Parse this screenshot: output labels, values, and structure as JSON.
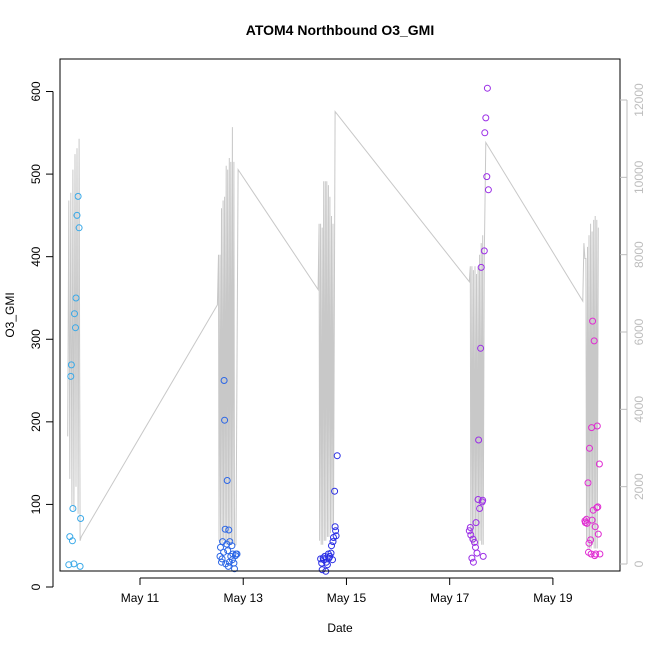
{
  "chart_data": {
    "type": "scatter",
    "title": "ATOM4 Northbound O3_GMI",
    "xlabel": "Date",
    "ylabel": "O3_GMI",
    "x_ticks": [
      "May 11",
      "May 13",
      "May 15",
      "May 17",
      "May 19"
    ],
    "x_tick_days": [
      11,
      13,
      15,
      17,
      19
    ],
    "xlim": [
      9.45,
      20.3
    ],
    "ylim": [
      0,
      620
    ],
    "y_ticks": [
      0,
      100,
      200,
      300,
      400,
      500,
      600
    ],
    "y2_ticks": [
      0,
      2000,
      4000,
      6000,
      8000,
      10000,
      12000
    ],
    "y2lim": [
      0,
      12000
    ],
    "series": [
      {
        "color": "#3aa9e8",
        "points": [
          [
            9.62,
            27
          ],
          [
            9.64,
            61
          ],
          [
            9.66,
            255
          ],
          [
            9.67,
            269
          ],
          [
            9.69,
            56
          ],
          [
            9.7,
            95
          ],
          [
            9.72,
            28
          ],
          [
            9.73,
            331
          ],
          [
            9.75,
            314
          ],
          [
            9.76,
            350
          ],
          [
            9.78,
            450
          ],
          [
            9.8,
            473
          ],
          [
            9.82,
            435
          ],
          [
            9.84,
            25
          ],
          [
            9.85,
            83
          ]
        ]
      },
      {
        "color": "#2b66e6",
        "points": [
          [
            12.55,
            37
          ],
          [
            12.56,
            48
          ],
          [
            12.58,
            30
          ],
          [
            12.59,
            34
          ],
          [
            12.6,
            55
          ],
          [
            12.62,
            42
          ],
          [
            12.63,
            250
          ],
          [
            12.64,
            202
          ],
          [
            12.65,
            70
          ],
          [
            12.66,
            28
          ],
          [
            12.68,
            52
          ],
          [
            12.69,
            129
          ],
          [
            12.7,
            44
          ],
          [
            12.71,
            25
          ],
          [
            12.72,
            69
          ],
          [
            12.73,
            30
          ],
          [
            12.74,
            55
          ],
          [
            12.76,
            37
          ],
          [
            12.78,
            50
          ],
          [
            12.79,
            33
          ],
          [
            12.8,
            40
          ],
          [
            12.82,
            29
          ],
          [
            12.83,
            22
          ],
          [
            12.85,
            38
          ],
          [
            12.86,
            40
          ],
          [
            12.88,
            40
          ]
        ]
      },
      {
        "color": "#2a2ee4",
        "points": [
          [
            14.5,
            34
          ],
          [
            14.52,
            29
          ],
          [
            14.53,
            21
          ],
          [
            14.55,
            35
          ],
          [
            14.56,
            33
          ],
          [
            14.58,
            37
          ],
          [
            14.6,
            19
          ],
          [
            14.61,
            30
          ],
          [
            14.63,
            27
          ],
          [
            14.65,
            40
          ],
          [
            14.66,
            35
          ],
          [
            14.68,
            37
          ],
          [
            14.7,
            41
          ],
          [
            14.71,
            50
          ],
          [
            14.73,
            33
          ],
          [
            14.74,
            55
          ],
          [
            14.75,
            60
          ],
          [
            14.77,
            116
          ],
          [
            14.78,
            73
          ],
          [
            14.79,
            68
          ],
          [
            14.8,
            62
          ],
          [
            14.82,
            159
          ]
        ]
      },
      {
        "color": "#9b2ee6",
        "points": [
          [
            17.38,
            68
          ],
          [
            17.4,
            72
          ],
          [
            17.41,
            63
          ],
          [
            17.43,
            35
          ],
          [
            17.45,
            58
          ],
          [
            17.46,
            30
          ],
          [
            17.48,
            54
          ],
          [
            17.5,
            48
          ],
          [
            17.51,
            78
          ],
          [
            17.53,
            41
          ],
          [
            17.55,
            106
          ],
          [
            17.56,
            178
          ],
          [
            17.58,
            95
          ],
          [
            17.6,
            289
          ],
          [
            17.61,
            387
          ],
          [
            17.63,
            103
          ],
          [
            17.64,
            105
          ],
          [
            17.65,
            37
          ],
          [
            17.67,
            407
          ],
          [
            17.68,
            550
          ],
          [
            17.7,
            568
          ],
          [
            17.72,
            497
          ],
          [
            17.73,
            604
          ],
          [
            17.75,
            481
          ]
        ]
      },
      {
        "color": "#e02bd2",
        "points": [
          [
            19.62,
            80
          ],
          [
            19.63,
            78
          ],
          [
            19.65,
            82
          ],
          [
            19.66,
            77
          ],
          [
            19.68,
            126
          ],
          [
            19.69,
            42
          ],
          [
            19.7,
            53
          ],
          [
            19.71,
            168
          ],
          [
            19.73,
            57
          ],
          [
            19.74,
            40
          ],
          [
            19.75,
            193
          ],
          [
            19.76,
            81
          ],
          [
            19.77,
            322
          ],
          [
            19.78,
            93
          ],
          [
            19.8,
            298
          ],
          [
            19.81,
            38
          ],
          [
            19.82,
            73
          ],
          [
            19.83,
            40
          ],
          [
            19.85,
            96
          ],
          [
            19.86,
            195
          ],
          [
            19.87,
            97
          ],
          [
            19.88,
            64
          ],
          [
            19.9,
            149
          ],
          [
            19.91,
            40
          ]
        ]
      }
    ],
    "line_series": {
      "color": "#c8c8c8",
      "axis": "right",
      "points": [
        [
          9.6,
          3300
        ],
        [
          9.62,
          9400
        ],
        [
          9.64,
          2200
        ],
        [
          9.66,
          9600
        ],
        [
          9.68,
          1500
        ],
        [
          9.7,
          10200
        ],
        [
          9.72,
          1400
        ],
        [
          9.74,
          10600
        ],
        [
          9.76,
          2000
        ],
        [
          9.78,
          10750
        ],
        [
          9.8,
          1300
        ],
        [
          9.82,
          11000
        ],
        [
          9.84,
          600
        ],
        [
          9.86,
          700
        ],
        [
          12.5,
          6700
        ],
        [
          12.52,
          8000
        ],
        [
          12.53,
          600
        ],
        [
          12.55,
          8000
        ],
        [
          12.56,
          500
        ],
        [
          12.58,
          9200
        ],
        [
          12.59,
          500
        ],
        [
          12.61,
          9400
        ],
        [
          12.62,
          600
        ],
        [
          12.64,
          9500
        ],
        [
          12.65,
          600
        ],
        [
          12.67,
          10300
        ],
        [
          12.68,
          500
        ],
        [
          12.7,
          10200
        ],
        [
          12.71,
          500
        ],
        [
          12.73,
          10500
        ],
        [
          12.74,
          500
        ],
        [
          12.76,
          10400
        ],
        [
          12.77,
          500
        ],
        [
          12.79,
          11300
        ],
        [
          12.8,
          600
        ],
        [
          12.82,
          10400
        ],
        [
          12.83,
          500
        ],
        [
          12.86,
          500
        ],
        [
          12.9,
          10200
        ],
        [
          14.45,
          7100
        ],
        [
          14.47,
          8800
        ],
        [
          14.48,
          600
        ],
        [
          14.5,
          8800
        ],
        [
          14.51,
          500
        ],
        [
          14.53,
          8700
        ],
        [
          14.54,
          500
        ],
        [
          14.56,
          9900
        ],
        [
          14.57,
          600
        ],
        [
          14.59,
          9900
        ],
        [
          14.6,
          600
        ],
        [
          14.62,
          9900
        ],
        [
          14.63,
          700
        ],
        [
          14.65,
          9800
        ],
        [
          14.66,
          700
        ],
        [
          14.68,
          9500
        ],
        [
          14.69,
          800
        ],
        [
          14.71,
          9000
        ],
        [
          14.72,
          900
        ],
        [
          14.74,
          8800
        ],
        [
          14.75,
          1000
        ],
        [
          14.78,
          11700
        ],
        [
          17.38,
          7300
        ],
        [
          17.4,
          7700
        ],
        [
          17.41,
          600
        ],
        [
          17.43,
          7700
        ],
        [
          17.44,
          500
        ],
        [
          17.46,
          7600
        ],
        [
          17.47,
          500
        ],
        [
          17.49,
          7700
        ],
        [
          17.5,
          600
        ],
        [
          17.52,
          7500
        ],
        [
          17.53,
          600
        ],
        [
          17.55,
          7700
        ],
        [
          17.56,
          500
        ],
        [
          17.58,
          8000
        ],
        [
          17.59,
          600
        ],
        [
          17.61,
          8300
        ],
        [
          17.62,
          500
        ],
        [
          17.64,
          8500
        ],
        [
          17.65,
          500
        ],
        [
          17.67,
          8000
        ],
        [
          17.7,
          10900
        ],
        [
          19.58,
          6800
        ],
        [
          19.6,
          8300
        ],
        [
          19.62,
          7900
        ],
        [
          19.64,
          7900
        ],
        [
          19.65,
          600
        ],
        [
          19.67,
          8200
        ],
        [
          19.68,
          400
        ],
        [
          19.7,
          8500
        ],
        [
          19.71,
          400
        ],
        [
          19.73,
          8800
        ],
        [
          19.74,
          400
        ],
        [
          19.76,
          8600
        ],
        [
          19.77,
          500
        ],
        [
          19.79,
          8900
        ],
        [
          19.8,
          400
        ],
        [
          19.82,
          9000
        ],
        [
          19.83,
          400
        ],
        [
          19.85,
          8900
        ],
        [
          19.86,
          400
        ],
        [
          19.88,
          8700
        ]
      ]
    }
  }
}
